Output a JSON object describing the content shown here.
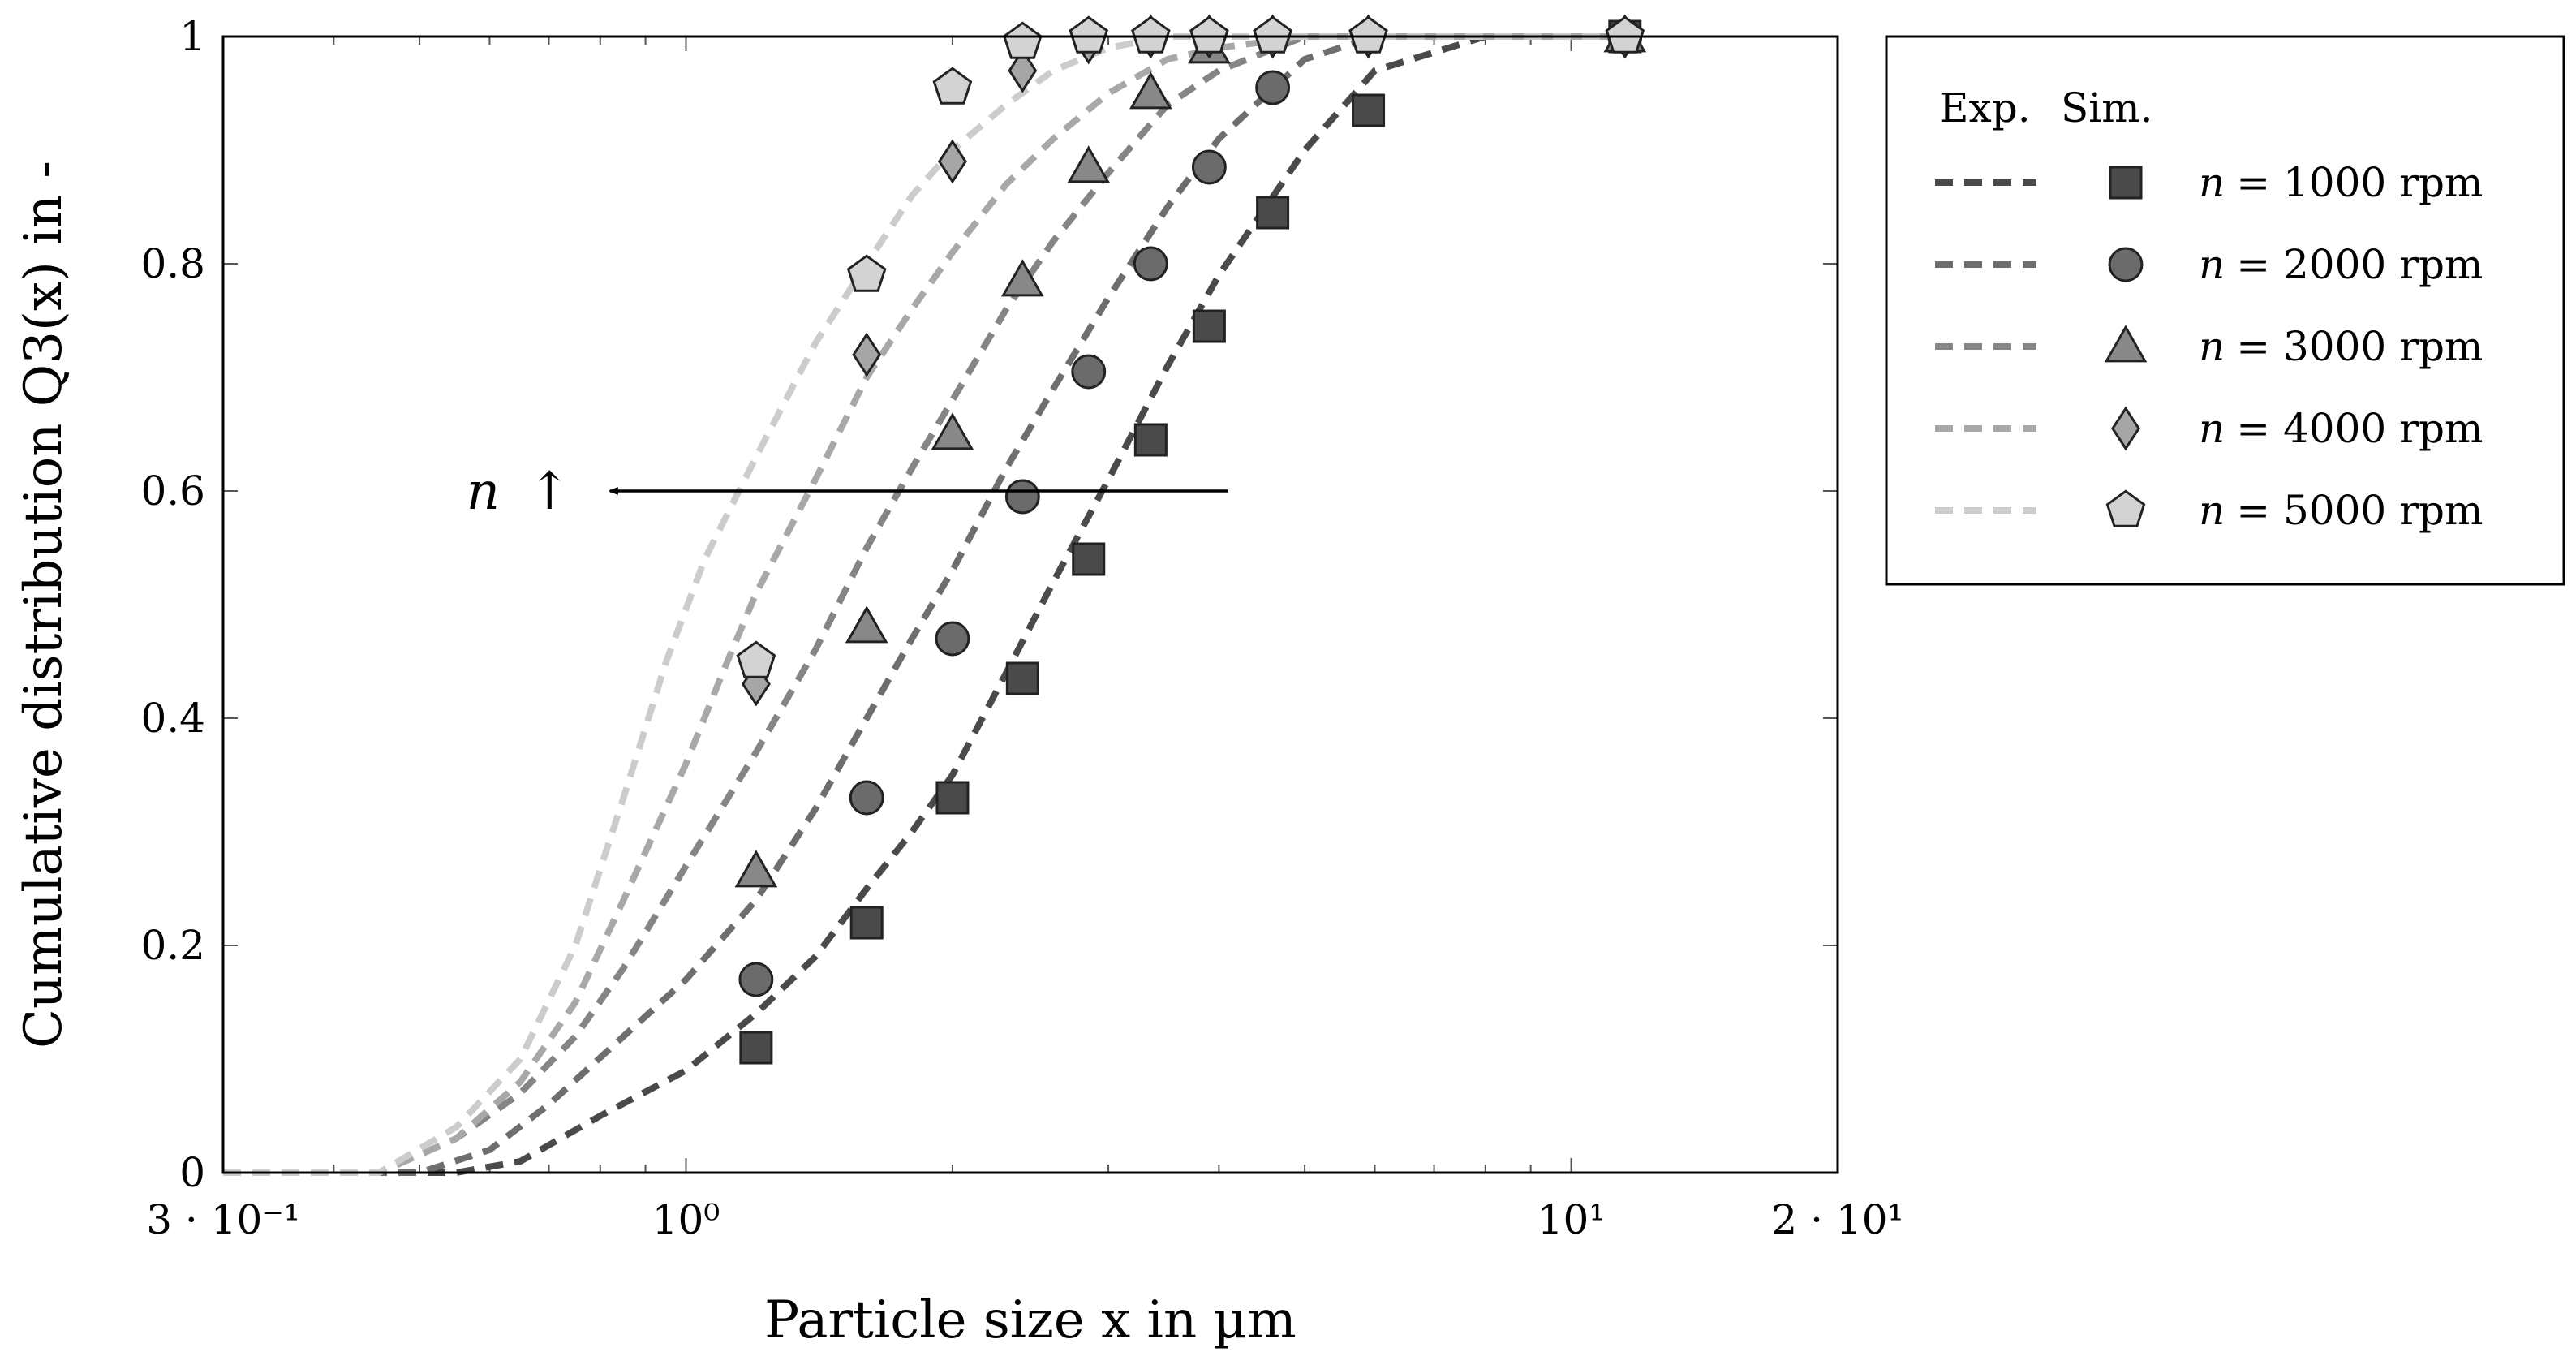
{
  "chart_data": {
    "type": "line",
    "title": "",
    "xlabel": "Particle size x in µm",
    "ylabel": "Cumulative distribution Q3(x) in -",
    "xscale": "log",
    "xlim": [
      0.3,
      20
    ],
    "ylim": [
      0,
      1
    ],
    "x_tick_labels": [
      "3 · 10⁻¹",
      "10⁰",
      "10¹",
      "2 · 10¹"
    ],
    "y_tick_labels": [
      "0",
      "0.2",
      "0.4",
      "0.6",
      "0.8",
      "1"
    ],
    "x_ticks": [
      0.3,
      1,
      10,
      20
    ],
    "y_ticks": [
      0,
      0.2,
      0.4,
      0.6,
      0.8,
      1
    ],
    "legend_position": "outside-right",
    "legend_headers": [
      "Exp.",
      "Sim."
    ],
    "series": [
      {
        "name": "n = 1000 rpm",
        "n_prefix": "n",
        "label_rest": "= 1000 rpm",
        "marker": "square",
        "fill": "#4a4a4a",
        "line_color": "#4a4a4a",
        "exp_x": [
          1.2,
          1.6,
          2.0,
          2.4,
          2.85,
          3.35,
          3.9,
          4.6,
          5.9,
          11.5
        ],
        "exp_y": [
          0.11,
          0.22,
          0.33,
          0.435,
          0.54,
          0.645,
          0.745,
          0.845,
          0.935,
          1.0
        ],
        "sim_x": [
          0.3,
          0.55,
          0.65,
          0.8,
          1.0,
          1.2,
          1.4,
          1.6,
          1.8,
          2.0,
          2.3,
          2.6,
          3.0,
          3.5,
          4.0,
          5.0,
          6.0,
          8.0,
          12.0
        ],
        "sim_y": [
          0.0,
          0.0,
          0.01,
          0.05,
          0.09,
          0.14,
          0.19,
          0.25,
          0.3,
          0.35,
          0.44,
          0.52,
          0.61,
          0.71,
          0.79,
          0.9,
          0.97,
          1.0,
          1.0
        ]
      },
      {
        "name": "n = 2000 rpm",
        "n_prefix": "n",
        "label_rest": "= 2000 rpm",
        "marker": "circle",
        "fill": "#6b6b6b",
        "line_color": "#6e6e6e",
        "exp_x": [
          1.2,
          1.6,
          2.0,
          2.4,
          2.85,
          3.35,
          3.9,
          4.6,
          11.5
        ],
        "exp_y": [
          0.17,
          0.33,
          0.47,
          0.595,
          0.705,
          0.8,
          0.885,
          0.955,
          1.0
        ],
        "sim_x": [
          0.3,
          0.5,
          0.6,
          0.7,
          0.85,
          1.0,
          1.2,
          1.4,
          1.6,
          1.8,
          2.0,
          2.3,
          2.6,
          3.0,
          3.5,
          4.0,
          5.0,
          6.0,
          12.0
        ],
        "sim_y": [
          0.0,
          0.0,
          0.02,
          0.06,
          0.12,
          0.17,
          0.24,
          0.32,
          0.4,
          0.47,
          0.53,
          0.62,
          0.69,
          0.77,
          0.85,
          0.91,
          0.98,
          1.0,
          1.0
        ]
      },
      {
        "name": "n = 3000 rpm",
        "n_prefix": "n",
        "label_rest": "= 3000 rpm",
        "marker": "triangle",
        "fill": "#888888",
        "line_color": "#858585",
        "exp_x": [
          1.2,
          1.6,
          2.0,
          2.4,
          2.85,
          3.35,
          3.9,
          11.5
        ],
        "exp_y": [
          0.265,
          0.48,
          0.65,
          0.785,
          0.885,
          0.95,
          0.99,
          1.0
        ],
        "sim_x": [
          0.3,
          0.45,
          0.55,
          0.65,
          0.75,
          0.85,
          1.0,
          1.2,
          1.4,
          1.6,
          1.8,
          2.0,
          2.3,
          2.6,
          3.0,
          3.5,
          4.0,
          5.0,
          12.0
        ],
        "sim_y": [
          0.0,
          0.0,
          0.03,
          0.07,
          0.12,
          0.18,
          0.27,
          0.37,
          0.46,
          0.55,
          0.62,
          0.68,
          0.76,
          0.82,
          0.88,
          0.94,
          0.97,
          1.0,
          1.0
        ]
      },
      {
        "name": "n = 4000 rpm",
        "n_prefix": "n",
        "label_rest": "= 4000 rpm",
        "marker": "diamond",
        "fill": "#a6a6a6",
        "line_color": "#a8a8a8",
        "exp_x": [
          1.2,
          1.6,
          2.0,
          2.4,
          2.85,
          3.35,
          3.9,
          4.6,
          5.9,
          11.5
        ],
        "exp_y": [
          0.43,
          0.72,
          0.89,
          0.97,
          0.995,
          1.0,
          1.0,
          1.0,
          1.0,
          1.0
        ],
        "sim_x": [
          0.3,
          0.45,
          0.55,
          0.65,
          0.75,
          0.85,
          1.0,
          1.1,
          1.2,
          1.4,
          1.6,
          1.8,
          2.0,
          2.3,
          2.6,
          3.0,
          3.5,
          4.0,
          5.0,
          12.0
        ],
        "sim_y": [
          0.0,
          0.0,
          0.03,
          0.08,
          0.15,
          0.24,
          0.36,
          0.44,
          0.51,
          0.61,
          0.7,
          0.76,
          0.81,
          0.87,
          0.91,
          0.95,
          0.98,
          0.99,
          1.0,
          1.0
        ]
      },
      {
        "name": "n = 5000 rpm",
        "n_prefix": "n",
        "label_rest": "= 5000 rpm",
        "marker": "pentagon",
        "fill": "#d3d3d3",
        "line_color": "#cccccc",
        "exp_x": [
          1.2,
          1.6,
          2.0,
          2.4,
          2.85,
          3.35,
          3.9,
          4.6,
          5.9,
          11.5
        ],
        "exp_y": [
          0.45,
          0.79,
          0.955,
          0.995,
          1.0,
          1.0,
          1.0,
          1.0,
          1.0,
          1.0
        ],
        "sim_x": [
          0.3,
          0.45,
          0.55,
          0.65,
          0.75,
          0.85,
          0.95,
          1.05,
          1.2,
          1.4,
          1.6,
          1.8,
          2.0,
          2.3,
          2.6,
          3.0,
          3.5,
          4.0,
          12.0
        ],
        "sim_y": [
          0.0,
          0.0,
          0.04,
          0.1,
          0.2,
          0.33,
          0.45,
          0.54,
          0.63,
          0.73,
          0.8,
          0.86,
          0.9,
          0.94,
          0.97,
          0.99,
          1.0,
          1.0,
          1.0
        ]
      }
    ],
    "annotation": {
      "text_italic": "n",
      "text_symbol": "↑",
      "arrow_from": [
        4.1,
        0.6
      ],
      "arrow_to": [
        0.8,
        0.6
      ]
    }
  }
}
